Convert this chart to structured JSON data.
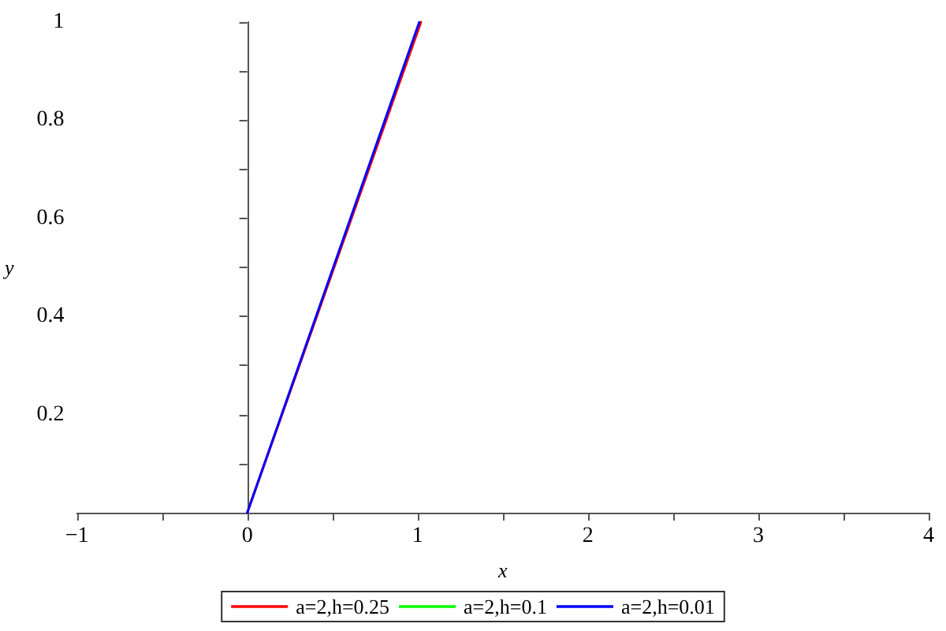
{
  "chart_data": {
    "type": "line",
    "xlabel": "x",
    "ylabel": "y",
    "xlim": [
      -1,
      4
    ],
    "ylim": [
      0,
      1
    ],
    "xticks": [
      {
        "value": -1,
        "label": "−1"
      },
      {
        "value": -0.5,
        "label": null
      },
      0,
      {
        "value": 0.5,
        "label": null
      },
      1,
      {
        "value": 1.5,
        "label": null
      },
      2,
      {
        "value": 2.5,
        "label": null
      },
      3,
      {
        "value": 3.5,
        "label": null
      },
      4
    ],
    "yticks": [
      {
        "value": 0.1,
        "label": null
      },
      0.2,
      {
        "value": 0.3,
        "label": null
      },
      0.4,
      {
        "value": 0.5,
        "label": null
      },
      0.6,
      {
        "value": 0.7,
        "label": null
      },
      0.8,
      {
        "value": 0.9,
        "label": null
      },
      1
    ],
    "series": [
      {
        "name": "a=2,h=0.25",
        "color": "#ff0000",
        "x": [
          0,
          1.02
        ],
        "values": [
          0,
          1
        ]
      },
      {
        "name": "a=2,h=0.1",
        "color": "#00ff00"
      },
      {
        "name": "a=2,h=0.01",
        "color": "#0000ff",
        "x": [
          0,
          1.01
        ],
        "values": [
          0,
          1
        ]
      }
    ],
    "legend": "bottom",
    "marker": "none",
    "line_style": "solid"
  }
}
